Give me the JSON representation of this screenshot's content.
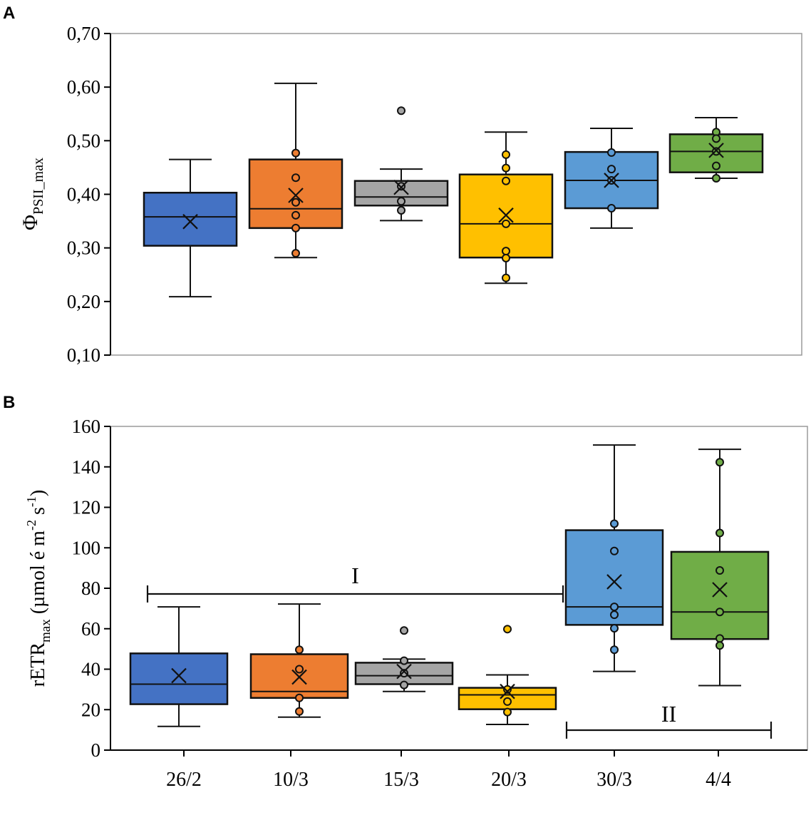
{
  "panel_labels": [
    "A",
    "B"
  ],
  "chart_data": [
    {
      "type": "box",
      "panel": "A",
      "ylabel": {
        "main": "Φ",
        "sub": "PSII_max"
      },
      "ylim": [
        0.1,
        0.7
      ],
      "yticks": [
        0.1,
        0.2,
        0.3,
        0.4,
        0.5,
        0.6,
        0.7
      ],
      "ytick_labels": [
        "0,10",
        "0,20",
        "0,30",
        "0,40",
        "0,50",
        "0,60",
        "0,70"
      ],
      "categories": [
        "26/2",
        "10/3",
        "15/3",
        "20/3",
        "30/3",
        "4/4"
      ],
      "colors": [
        "#4472C4",
        "#ED7D31",
        "#A5A5A5",
        "#FFC000",
        "#5B9BD5",
        "#70AD47"
      ],
      "boxes": [
        {
          "whisker_low": 0.209,
          "q1": 0.304,
          "median": 0.358,
          "q3": 0.403,
          "whisker_high": 0.465,
          "mean": 0.349,
          "points": [],
          "outliers": []
        },
        {
          "whisker_low": 0.282,
          "q1": 0.337,
          "median": 0.373,
          "q3": 0.465,
          "whisker_high": 0.607,
          "mean": 0.398,
          "points": [
            0.477,
            0.431,
            0.385,
            0.361,
            0.337,
            0.29
          ],
          "outliers": []
        },
        {
          "whisker_low": 0.351,
          "q1": 0.379,
          "median": 0.395,
          "q3": 0.425,
          "whisker_high": 0.447,
          "mean": 0.413,
          "points": [
            0.415,
            0.387,
            0.37
          ],
          "outliers": [
            0.556
          ]
        },
        {
          "whisker_low": 0.234,
          "q1": 0.282,
          "median": 0.345,
          "q3": 0.437,
          "whisker_high": 0.516,
          "mean": 0.361,
          "points": [
            0.474,
            0.449,
            0.425,
            0.345,
            0.294,
            0.281,
            0.244
          ],
          "outliers": []
        },
        {
          "whisker_low": 0.337,
          "q1": 0.374,
          "median": 0.426,
          "q3": 0.479,
          "whisker_high": 0.523,
          "mean": 0.426,
          "points": [
            0.478,
            0.447,
            0.426,
            0.374
          ],
          "outliers": []
        },
        {
          "whisker_low": 0.43,
          "q1": 0.441,
          "median": 0.48,
          "q3": 0.512,
          "whisker_high": 0.543,
          "mean": 0.482,
          "points": [
            0.516,
            0.504,
            0.48,
            0.453,
            0.43
          ],
          "outliers": []
        }
      ]
    },
    {
      "type": "box",
      "panel": "B",
      "ylabel": {
        "main": "rETR",
        "sub": "max",
        "unit_a": " (µmol é m",
        "sup_a": "-2",
        "unit_b": " s",
        "sup_b": "-1",
        "unit_c": ")"
      },
      "ylim": [
        0,
        160
      ],
      "yticks": [
        0,
        20,
        40,
        60,
        80,
        100,
        120,
        140,
        160
      ],
      "ytick_labels": [
        "0",
        "20",
        "40",
        "60",
        "80",
        "100",
        "120",
        "140",
        "160"
      ],
      "categories": [
        "26/2",
        "10/3",
        "15/3",
        "20/3",
        "30/3",
        "4/4"
      ],
      "xtick_labels": [
        "26/2",
        "10/3",
        "15/3",
        "20/3",
        "30/3",
        "4/4"
      ],
      "colors": [
        "#4472C4",
        "#ED7D31",
        "#A5A5A5",
        "#FFC000",
        "#5B9BD5",
        "#70AD47"
      ],
      "boxes": [
        {
          "whisker_low": 11.7,
          "q1": 22.7,
          "median": 32.6,
          "q3": 47.8,
          "whisker_high": 70.8,
          "mean": 36.8,
          "points": [],
          "outliers": []
        },
        {
          "whisker_low": 16.3,
          "q1": 25.8,
          "median": 29.0,
          "q3": 47.4,
          "whisker_high": 72.2,
          "mean": 36.1,
          "points": [
            49.6,
            40.0,
            25.8,
            19.1
          ],
          "outliers": []
        },
        {
          "whisker_low": 29.0,
          "q1": 32.6,
          "median": 36.8,
          "q3": 43.2,
          "whisker_high": 45.0,
          "mean": 38.9,
          "points": [
            44.2,
            38.0,
            32.2
          ],
          "outliers": [
            59.1
          ]
        },
        {
          "whisker_low": 12.7,
          "q1": 20.2,
          "median": 27.3,
          "q3": 30.8,
          "whisker_high": 37.2,
          "mean": 29.0,
          "points": [
            30.0,
            24.0,
            18.8
          ],
          "outliers": [
            59.8
          ]
        },
        {
          "whisker_low": 38.9,
          "q1": 61.9,
          "median": 70.8,
          "q3": 108.7,
          "whisker_high": 150.8,
          "mean": 83.2,
          "points": [
            111.9,
            98.4,
            70.8,
            66.9,
            60.2,
            49.6
          ],
          "outliers": []
        },
        {
          "whisker_low": 31.9,
          "q1": 54.9,
          "median": 68.3,
          "q3": 98.0,
          "whisker_high": 148.7,
          "mean": 79.3,
          "points": [
            142.3,
            107.3,
            88.8,
            68.3,
            55.2,
            51.7
          ],
          "outliers": []
        }
      ],
      "annotations": [
        {
          "label": "I",
          "from_category": "26/2",
          "to_category": "20/3"
        },
        {
          "label": "II",
          "from_category": "30/3",
          "to_category": "4/4"
        }
      ]
    }
  ]
}
